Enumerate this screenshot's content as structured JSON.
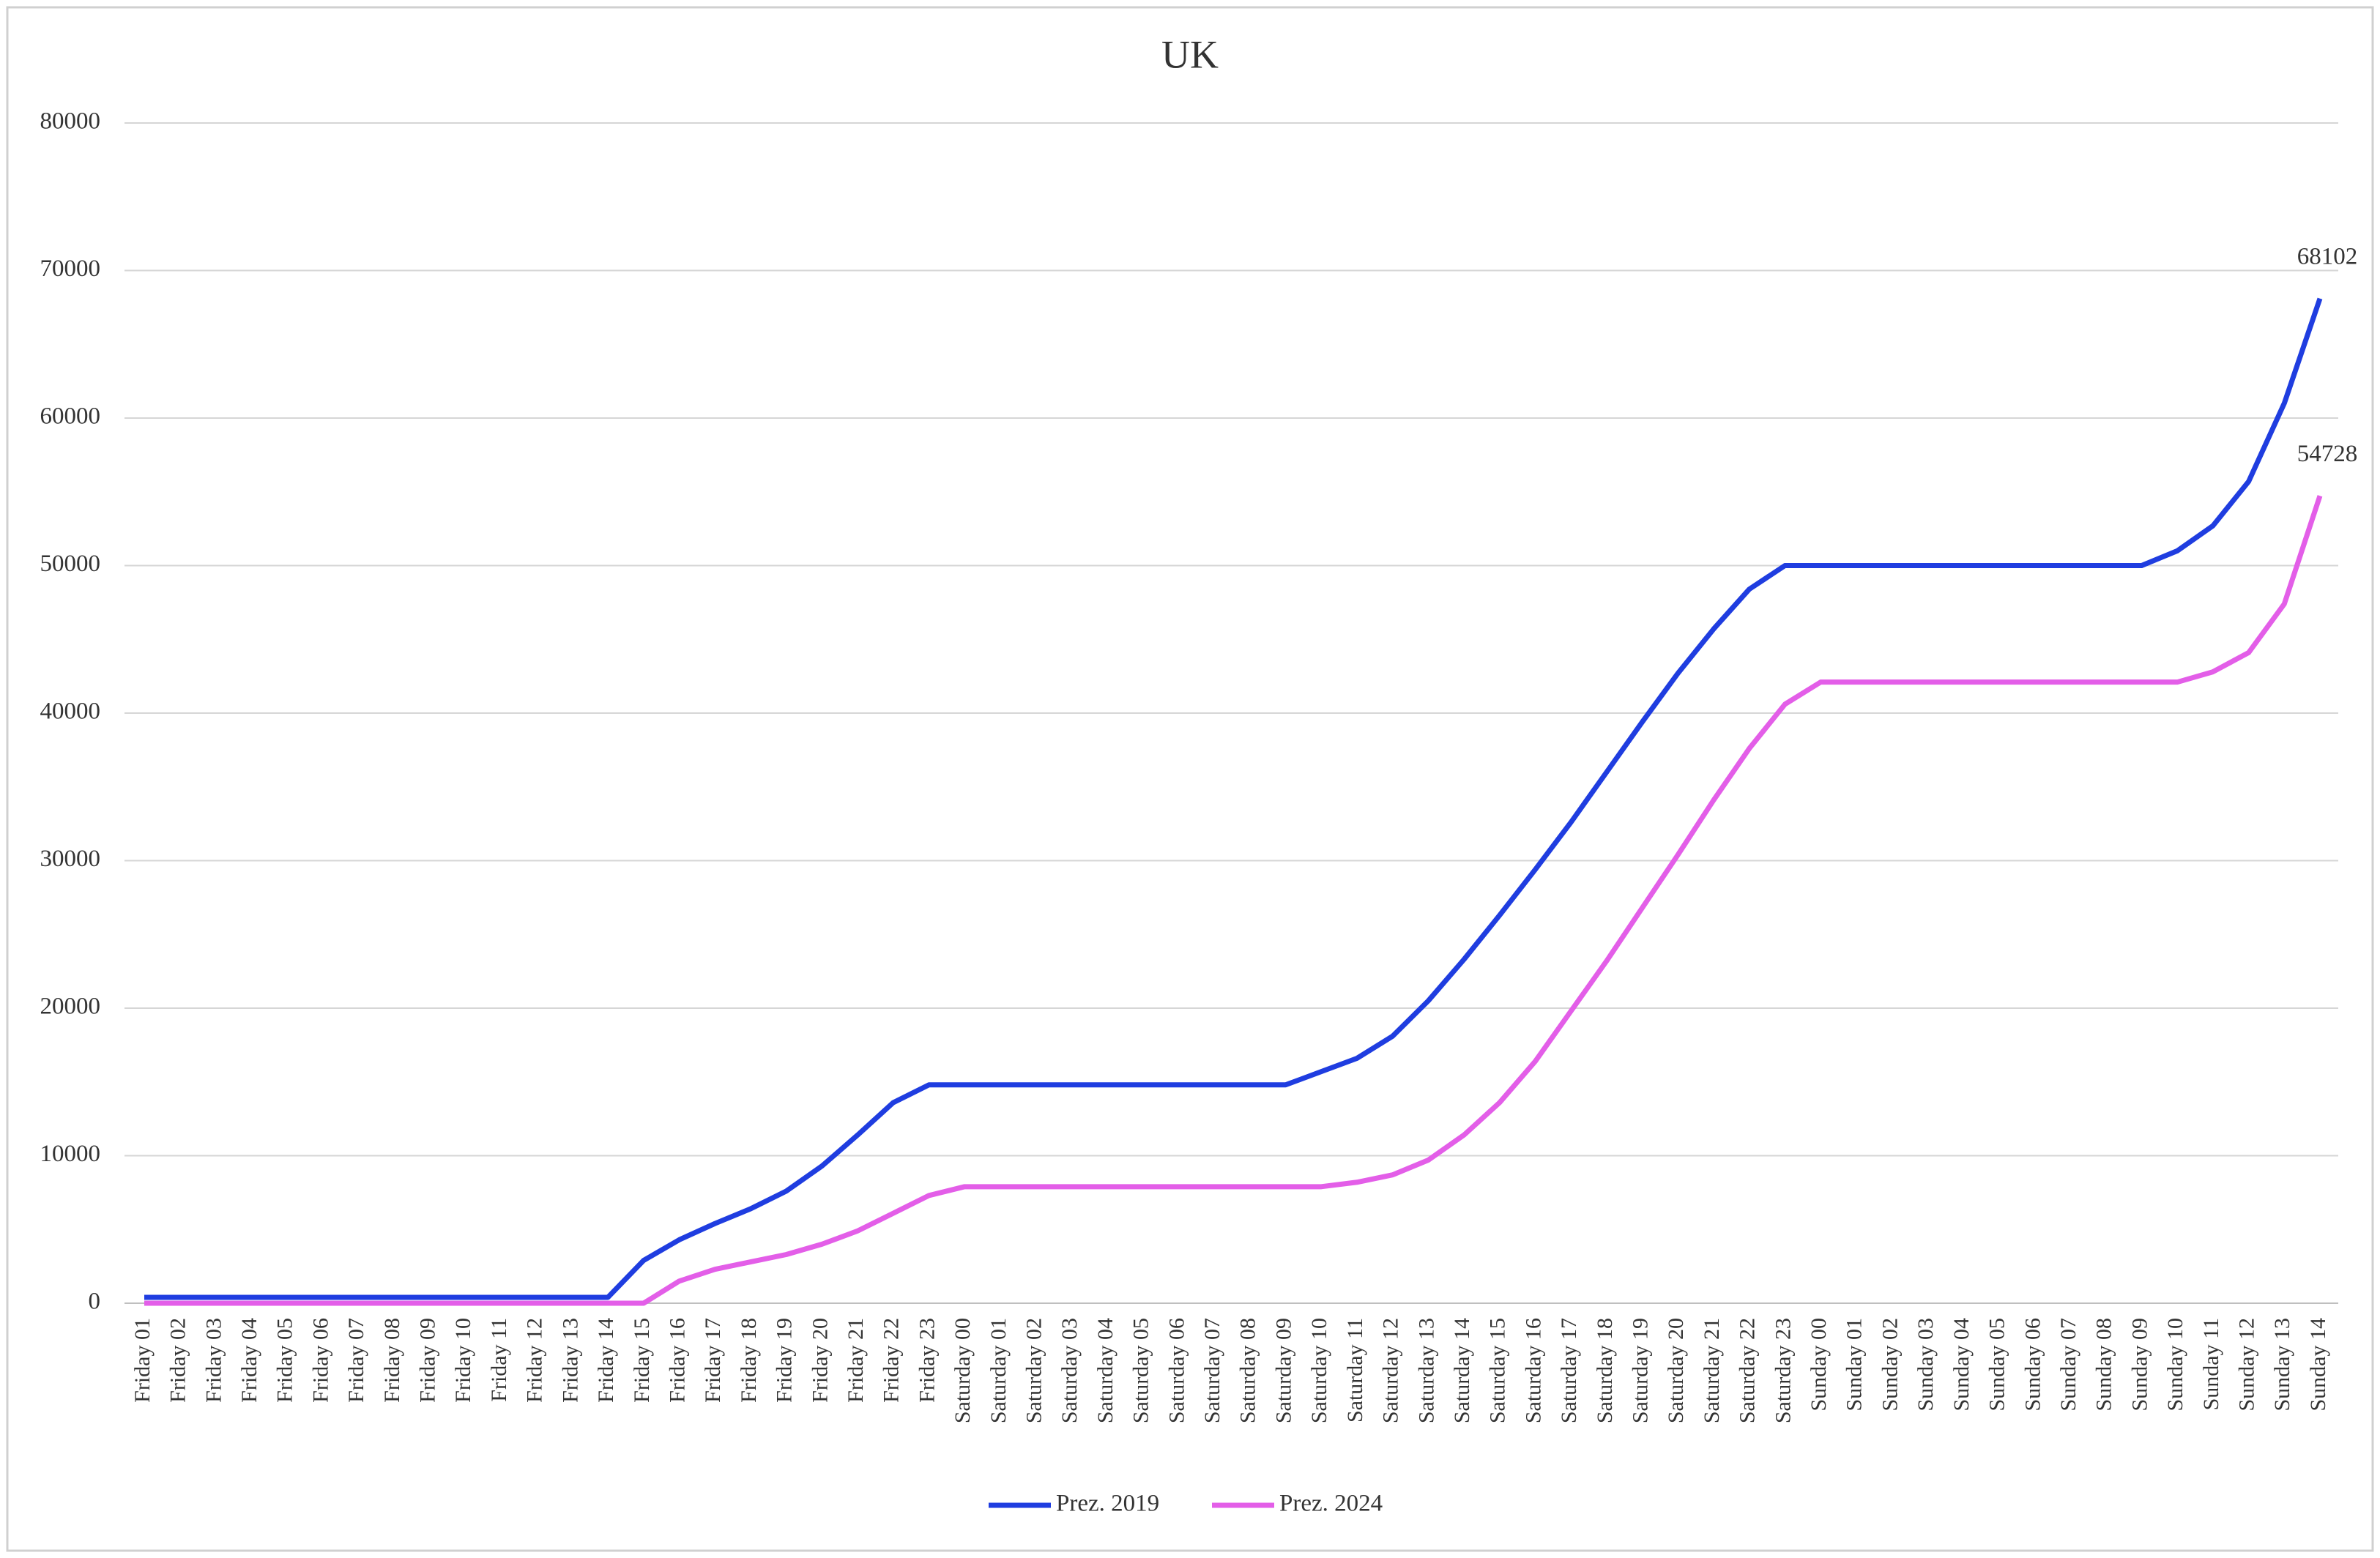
{
  "chart_data": {
    "type": "line",
    "title": "UK",
    "categories": [
      "Friday 01",
      "Friday 02",
      "Friday 03",
      "Friday 04",
      "Friday 05",
      "Friday 06",
      "Friday 07",
      "Friday 08",
      "Friday 09",
      "Friday 10",
      "Friday 11",
      "Friday 12",
      "Friday 13",
      "Friday 14",
      "Friday 15",
      "Friday 16",
      "Friday 17",
      "Friday 18",
      "Friday 19",
      "Friday 20",
      "Friday 21",
      "Friday 22",
      "Friday 23",
      "Saturday 00",
      "Saturday 01",
      "Saturday 02",
      "Saturday 03",
      "Saturday 04",
      "Saturday 05",
      "Saturday 06",
      "Saturday 07",
      "Saturday 08",
      "Saturday 09",
      "Saturday 10",
      "Saturday 11",
      "Saturday 12",
      "Saturday 13",
      "Saturday 14",
      "Saturday 15",
      "Saturday 16",
      "Saturday 17",
      "Saturday 18",
      "Saturday 19",
      "Saturday 20",
      "Saturday 21",
      "Saturday 22",
      "Saturday 23",
      "Sunday 00",
      "Sunday 01",
      "Sunday 02",
      "Sunday 03",
      "Sunday 04",
      "Sunday 05",
      "Sunday 06",
      "Sunday 07",
      "Sunday 08",
      "Sunday 09",
      "Sunday 10",
      "Sunday 11",
      "Sunday 12",
      "Sunday 13",
      "Sunday 14"
    ],
    "series": [
      {
        "name": "Prez. 2019",
        "color": "#1f3de0",
        "values": [
          400,
          400,
          400,
          400,
          400,
          400,
          400,
          400,
          400,
          400,
          400,
          400,
          400,
          400,
          2900,
          4300,
          5400,
          6400,
          7600,
          9300,
          11400,
          13600,
          14800,
          14800,
          14800,
          14800,
          14800,
          14800,
          14800,
          14800,
          14800,
          14800,
          14800,
          15700,
          16600,
          18100,
          20500,
          23300,
          26300,
          29400,
          32600,
          36000,
          39400,
          42700,
          45700,
          48400,
          50000,
          50000,
          50000,
          50000,
          50000,
          50000,
          50000,
          50000,
          50000,
          50000,
          50000,
          51000,
          52700,
          55700,
          61000,
          68102
        ]
      },
      {
        "name": "Prez. 2024",
        "color": "#e35ee8",
        "values": [
          0,
          0,
          0,
          0,
          0,
          0,
          0,
          0,
          0,
          0,
          0,
          0,
          0,
          0,
          0,
          1500,
          2300,
          2800,
          3300,
          4000,
          4900,
          6100,
          7300,
          7900,
          7900,
          7900,
          7900,
          7900,
          7900,
          7900,
          7900,
          7900,
          7900,
          7900,
          8200,
          8700,
          9700,
          11400,
          13600,
          16400,
          19800,
          23200,
          26800,
          30400,
          34100,
          37600,
          40600,
          42100,
          42100,
          42100,
          42100,
          42100,
          42100,
          42100,
          42100,
          42100,
          42100,
          42100,
          42800,
          44100,
          47400,
          54728
        ]
      }
    ],
    "ylim": [
      0,
      80000
    ],
    "yticks": [
      0,
      10000,
      20000,
      30000,
      40000,
      50000,
      60000,
      70000,
      80000
    ],
    "grid": true,
    "legend": "bottom"
  }
}
